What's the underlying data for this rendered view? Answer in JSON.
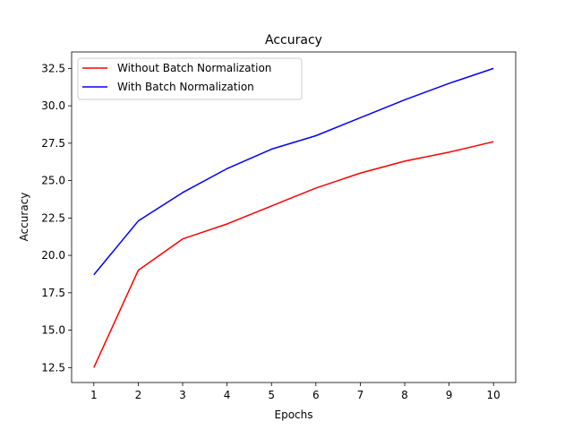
{
  "chart_data": {
    "type": "line",
    "title": "Accuracy",
    "xlabel": "Epochs",
    "ylabel": "Accuracy",
    "x": [
      1,
      2,
      3,
      4,
      5,
      6,
      7,
      8,
      9,
      10
    ],
    "xlim": [
      0.5,
      10.5
    ],
    "ylim": [
      11.5,
      33.6
    ],
    "xticks": [
      1,
      2,
      3,
      4,
      5,
      6,
      7,
      8,
      9,
      10
    ],
    "yticks": [
      12.5,
      15.0,
      17.5,
      20.0,
      22.5,
      25.0,
      27.5,
      30.0,
      32.5
    ],
    "ytick_labels": [
      "12.5",
      "15.0",
      "17.5",
      "20.0",
      "22.5",
      "25.0",
      "27.5",
      "30.0",
      "32.5"
    ],
    "grid": false,
    "legend_position": "top-left",
    "series": [
      {
        "name": "Without Batch Normalization",
        "color": "#ff0000",
        "values": [
          12.5,
          19.0,
          21.1,
          22.1,
          23.3,
          24.5,
          25.5,
          26.3,
          26.9,
          27.6
        ]
      },
      {
        "name": "With Batch Normalization",
        "color": "#0000ff",
        "values": [
          18.7,
          22.3,
          24.2,
          25.8,
          27.1,
          28.0,
          29.2,
          30.4,
          31.5,
          32.5
        ]
      }
    ]
  }
}
